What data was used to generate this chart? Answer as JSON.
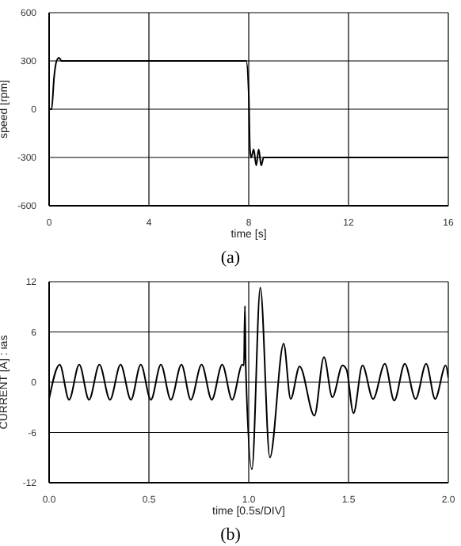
{
  "chart_data": [
    {
      "type": "line",
      "xlabel": "time [s]",
      "ylabel": "speed [rpm]",
      "annotations": [
        "(a)"
      ],
      "xlim": [
        0,
        16
      ],
      "xticks": [
        0,
        4,
        8,
        12,
        16
      ],
      "ylim": [
        -600,
        600
      ],
      "yticks": [
        -600,
        -300,
        0,
        300,
        600
      ],
      "grid": true,
      "line_style": "solid",
      "marker": "none",
      "series": [
        {
          "color": "#000000",
          "x": [
            0,
            0.1,
            0.2,
            0.3,
            0.4,
            0.5,
            0.7,
            1,
            2,
            3,
            4,
            5,
            6,
            7,
            7.9,
            8,
            8.05,
            8.1,
            8.2,
            8.3,
            8.4,
            8.5,
            8.6,
            8.7,
            8.8,
            9,
            9.5,
            10,
            12,
            14,
            16
          ],
          "values": [
            0,
            0,
            200,
            300,
            320,
            300,
            300,
            300,
            300,
            300,
            300,
            300,
            300,
            300,
            300,
            100,
            -250,
            -300,
            -250,
            -350,
            -250,
            -350,
            -300,
            -300,
            -300,
            -300,
            -300,
            -300,
            -300,
            -300,
            -300
          ]
        }
      ]
    },
    {
      "type": "line",
      "xlabel": "time [0.5s/DIV]",
      "ylabel": "CURRENT [A] : ias",
      "annotations": [
        "(b)"
      ],
      "xlim": [
        0,
        2
      ],
      "xticks": [
        {
          "value": 0,
          "label": "0.0"
        },
        0.5,
        {
          "value": 1,
          "label": "1.0"
        },
        1.5,
        {
          "value": 2,
          "label": "2.0"
        }
      ],
      "ylim": [
        -12,
        12
      ],
      "yticks": [
        -12,
        -6,
        0,
        6,
        12
      ],
      "grid": true,
      "line_style": "solid",
      "marker": "none",
      "series": [
        {
          "color": "#000000",
          "x": [
            0,
            0.053,
            0.1,
            0.151,
            0.2,
            0.252,
            0.305,
            0.358,
            0.41,
            0.459,
            0.51,
            0.56,
            0.61,
            0.663,
            0.71,
            0.764,
            0.815,
            0.867,
            0.917,
            0.968,
            0.976,
            0.981,
            0.985,
            1.016,
            1.058,
            1.106,
            1.175,
            1.21,
            1.255,
            1.329,
            1.377,
            1.419,
            1.47,
            1.49,
            1.525,
            1.57,
            1.623,
            1.682,
            1.729,
            1.782,
            1.836,
            1.889,
            1.934,
            1.987,
            2
          ],
          "values": [
            -2,
            2.1,
            -2.1,
            2.1,
            -2.1,
            2.1,
            -2.1,
            2.1,
            -2.1,
            2.1,
            -2.1,
            2.1,
            -2.1,
            2.1,
            -2.1,
            2.1,
            -2.1,
            2.1,
            -2.1,
            2.1,
            2,
            9.1,
            2,
            -10.4,
            11.3,
            -9,
            4.6,
            -2,
            1.9,
            -4,
            3,
            -1.8,
            2,
            1.5,
            -3.7,
            2,
            -2,
            2.2,
            -2.2,
            2.2,
            -2,
            2.2,
            -2,
            2,
            0.5
          ]
        }
      ]
    }
  ]
}
